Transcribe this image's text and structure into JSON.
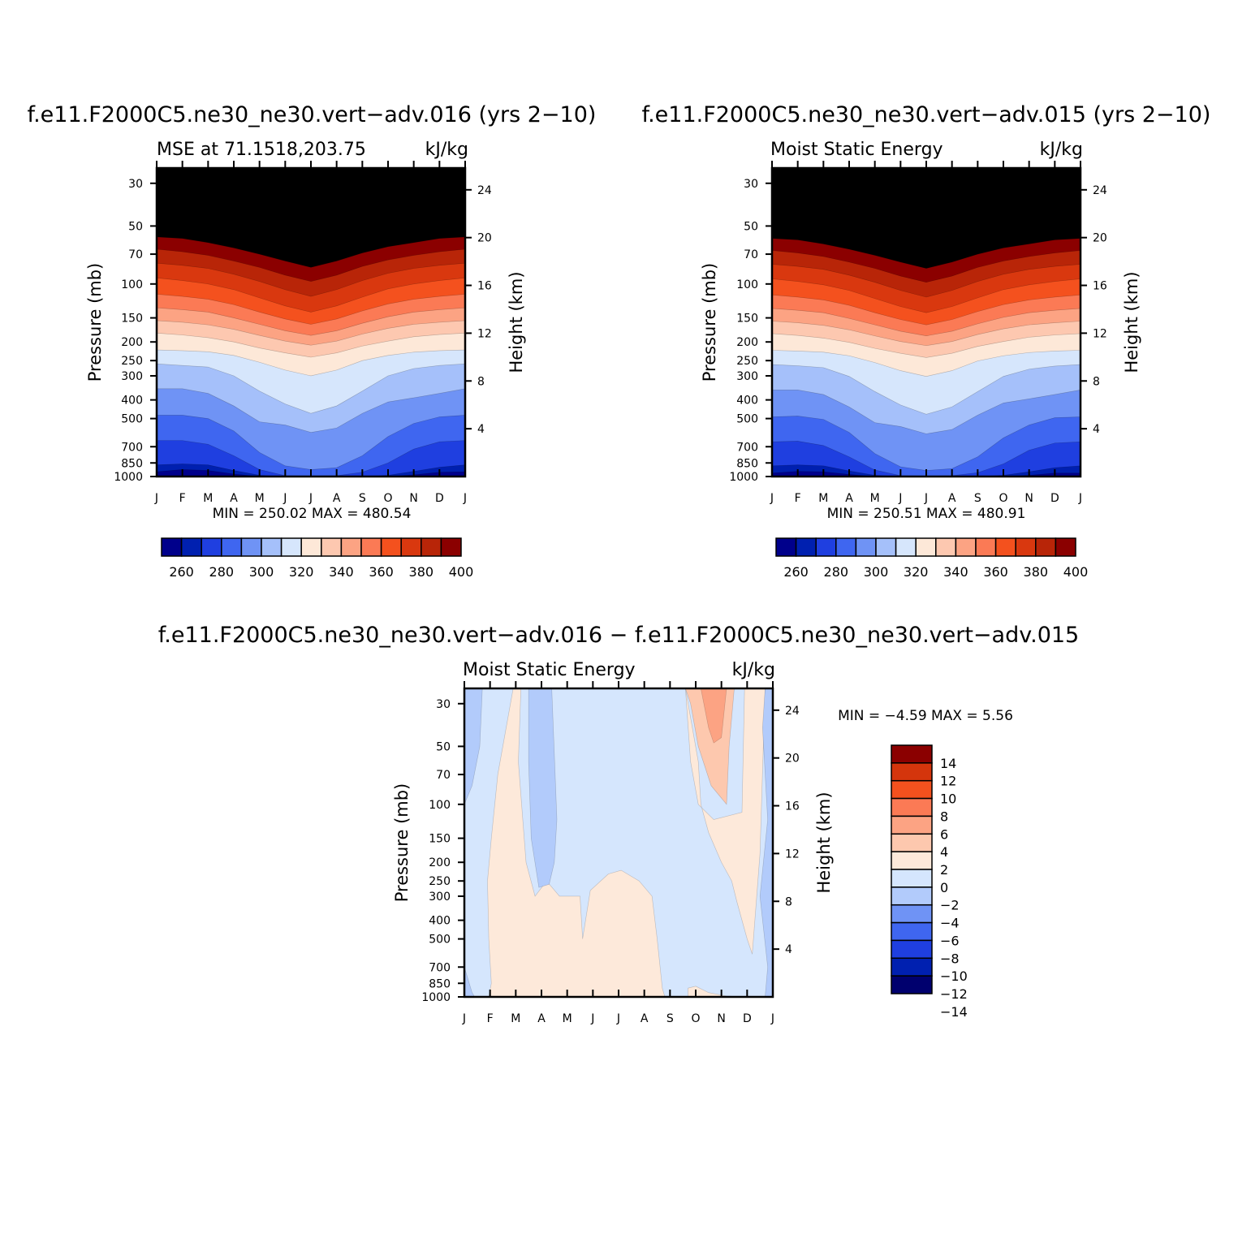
{
  "palette": {
    "mse": [
      "#00008b",
      "#0020b0",
      "#1f3fe0",
      "#3f66f0",
      "#6f93f5",
      "#a5c0fa",
      "#d6e6fc",
      "#fde8d8",
      "#fdc8b0",
      "#fca383",
      "#fb7a55",
      "#f4511e",
      "#d9380f",
      "#b82508",
      "#8b0000"
    ],
    "diff": [
      "#00006e",
      "#0020b0",
      "#1f3fe0",
      "#3f66f0",
      "#6f93f5",
      "#b2cbfb",
      "#d5e6fd",
      "#fde9da",
      "#fdc8ae",
      "#fca383",
      "#fb7a55",
      "#f4511e",
      "#d4350c",
      "#8b0000"
    ]
  },
  "chart_data": [
    {
      "type": "contour",
      "header": "f.e11.F2000C5.ne30_ne30.vert−adv.016 (yrs 2−10)",
      "left_subtitle": "MSE at 71.1518,203.75",
      "right_subtitle": "kJ/kg",
      "xlabel": "",
      "ylabel": "Pressure (mb)",
      "y2label": "Height (km)",
      "x_ticks": [
        "J",
        "F",
        "M",
        "A",
        "M",
        "J",
        "J",
        "A",
        "S",
        "O",
        "N",
        "D",
        "J"
      ],
      "p_ticks": [
        "30",
        "50",
        "70",
        "100",
        "150",
        "200",
        "250",
        "300",
        "400",
        "500",
        "700",
        "850",
        "1000"
      ],
      "h_ticks": [
        "24",
        "20",
        "16",
        "12",
        "8",
        "4"
      ],
      "minmax_label": "MIN = 250.02 MAX = 480.54",
      "min": 250.02,
      "max": 480.54,
      "colorbar_levels": [
        260,
        270,
        280,
        290,
        300,
        310,
        320,
        330,
        340,
        350,
        360,
        370,
        380,
        390,
        400
      ],
      "colorbar_labels": [
        "260",
        "280",
        "300",
        "320",
        "340",
        "360",
        "380",
        "400"
      ],
      "boundaries_mb": [
        [
          945,
          920,
          930,
          970,
          1000,
          1000,
          1000,
          1000,
          1000,
          1000,
          980,
          950,
          945
        ],
        [
          870,
          860,
          870,
          930,
          985,
          1000,
          1000,
          1000,
          1000,
          985,
          940,
          895,
          870
        ],
        [
          650,
          650,
          680,
          780,
          920,
          990,
          995,
          990,
          950,
          850,
          720,
          660,
          650
        ],
        [
          480,
          480,
          500,
          580,
          750,
          880,
          920,
          900,
          780,
          620,
          530,
          490,
          480
        ],
        [
          350,
          350,
          370,
          430,
          520,
          540,
          590,
          560,
          470,
          410,
          390,
          370,
          350
        ],
        [
          260,
          265,
          270,
          300,
          360,
          420,
          470,
          430,
          360,
          300,
          275,
          265,
          260
        ],
        [
          220,
          222,
          225,
          235,
          255,
          280,
          300,
          280,
          250,
          235,
          226,
          222,
          220
        ],
        [
          180,
          184,
          190,
          200,
          215,
          228,
          240,
          228,
          210,
          198,
          188,
          183,
          180
        ],
        [
          155,
          158,
          163,
          172,
          185,
          198,
          208,
          198,
          182,
          170,
          162,
          158,
          155
        ],
        [
          133,
          136,
          140,
          150,
          162,
          175,
          185,
          175,
          160,
          148,
          140,
          136,
          133
        ],
        [
          113,
          116,
          120,
          128,
          140,
          152,
          162,
          152,
          138,
          127,
          120,
          116,
          113
        ],
        [
          93,
          96,
          100,
          107,
          118,
          130,
          140,
          130,
          117,
          106,
          100,
          96,
          93
        ],
        [
          78,
          80,
          83,
          89,
          97,
          107,
          116,
          107,
          96,
          88,
          83,
          80,
          78
        ],
        [
          66,
          68,
          71,
          76,
          82,
          90,
          97,
          90,
          81,
          75,
          71,
          68,
          66
        ],
        [
          57,
          58,
          61,
          65,
          70,
          76,
          82,
          76,
          69,
          64,
          61,
          58,
          57
        ]
      ]
    },
    {
      "type": "contour",
      "header": "f.e11.F2000C5.ne30_ne30.vert−adv.015 (yrs 2−10)",
      "left_subtitle": "Moist Static Energy",
      "right_subtitle": "kJ/kg",
      "xlabel": "",
      "ylabel": "Pressure (mb)",
      "y2label": "Height (km)",
      "x_ticks": [
        "J",
        "F",
        "M",
        "A",
        "M",
        "J",
        "J",
        "A",
        "S",
        "O",
        "N",
        "D",
        "J"
      ],
      "p_ticks": [
        "30",
        "50",
        "70",
        "100",
        "150",
        "200",
        "250",
        "300",
        "400",
        "500",
        "700",
        "850",
        "1000"
      ],
      "h_ticks": [
        "24",
        "20",
        "16",
        "12",
        "8",
        "4"
      ],
      "minmax_label": "MIN = 250.51 MAX = 480.91",
      "min": 250.51,
      "max": 480.91,
      "colorbar_levels": [
        260,
        270,
        280,
        290,
        300,
        310,
        320,
        330,
        340,
        350,
        360,
        370,
        380,
        390,
        400
      ],
      "colorbar_labels": [
        "260",
        "280",
        "300",
        "320",
        "340",
        "360",
        "380",
        "400"
      ],
      "boundaries_mb": [
        [
          960,
          940,
          945,
          975,
          1000,
          1000,
          1000,
          1000,
          1000,
          1000,
          985,
          960,
          960
        ],
        [
          880,
          870,
          880,
          935,
          985,
          1000,
          1000,
          1000,
          1000,
          985,
          945,
          900,
          880
        ],
        [
          660,
          655,
          690,
          790,
          925,
          990,
          995,
          990,
          955,
          860,
          730,
          670,
          660
        ],
        [
          490,
          485,
          505,
          590,
          760,
          890,
          930,
          910,
          790,
          630,
          540,
          495,
          490
        ],
        [
          355,
          355,
          375,
          435,
          525,
          550,
          600,
          570,
          480,
          415,
          395,
          375,
          355
        ],
        [
          262,
          266,
          272,
          302,
          362,
          425,
          475,
          435,
          362,
          302,
          277,
          267,
          262
        ],
        [
          221,
          223,
          226,
          236,
          256,
          282,
          302,
          282,
          251,
          236,
          227,
          223,
          221
        ],
        [
          181,
          185,
          191,
          201,
          216,
          229,
          241,
          229,
          211,
          199,
          189,
          184,
          181
        ],
        [
          156,
          159,
          164,
          173,
          186,
          199,
          209,
          199,
          183,
          171,
          163,
          159,
          156
        ],
        [
          134,
          137,
          141,
          151,
          163,
          176,
          186,
          176,
          161,
          149,
          141,
          137,
          134
        ],
        [
          114,
          117,
          121,
          129,
          141,
          153,
          163,
          153,
          139,
          128,
          121,
          117,
          114
        ],
        [
          94,
          97,
          101,
          108,
          119,
          131,
          141,
          131,
          118,
          107,
          101,
          97,
          94
        ],
        [
          79,
          81,
          84,
          90,
          98,
          108,
          117,
          108,
          97,
          89,
          84,
          81,
          79
        ],
        [
          67,
          69,
          72,
          77,
          83,
          91,
          98,
          91,
          82,
          76,
          72,
          69,
          67
        ],
        [
          58,
          59,
          62,
          66,
          71,
          77,
          83,
          77,
          70,
          65,
          62,
          59,
          58
        ]
      ]
    },
    {
      "type": "contour",
      "header": "f.e11.F2000C5.ne30_ne30.vert−adv.016 − f.e11.F2000C5.ne30_ne30.vert−adv.015",
      "left_subtitle": "Moist Static Energy",
      "right_subtitle": "kJ/kg",
      "ylabel": "Pressure (mb)",
      "y2label": "Height (km)",
      "x_ticks": [
        "J",
        "F",
        "M",
        "A",
        "M",
        "J",
        "J",
        "A",
        "S",
        "O",
        "N",
        "D",
        "J"
      ],
      "p_ticks": [
        "30",
        "50",
        "70",
        "100",
        "150",
        "200",
        "250",
        "300",
        "400",
        "500",
        "700",
        "850",
        "1000"
      ],
      "h_ticks": [
        "24",
        "20",
        "16",
        "12",
        "8",
        "4"
      ],
      "minmax_label": "MIN = −4.59 MAX = 5.56",
      "min": -4.59,
      "max": 5.56,
      "colorbar_labels": [
        "14",
        "12",
        "10",
        "8",
        "6",
        "4",
        "2",
        "0",
        "−2",
        "−4",
        "−6",
        "−8",
        "−10",
        "−12",
        "−14"
      ],
      "background_range": "0 to −2",
      "regions": [
        {
          "range": "0 to 2",
          "month_pressure": [
            [
              0.95,
              1000
            ],
            [
              1.05,
              850
            ],
            [
              0.95,
              500
            ],
            [
              0.9,
              250
            ],
            [
              1.05,
              150
            ],
            [
              1.3,
              70
            ],
            [
              1.9,
              25
            ],
            [
              2.2,
              25
            ],
            [
              2.1,
              60
            ],
            [
              2.4,
              200
            ],
            [
              2.75,
              300
            ],
            [
              3.2,
              250
            ],
            [
              3.7,
              300
            ],
            [
              4.5,
              300
            ],
            [
              4.6,
              500
            ],
            [
              4.9,
              280
            ],
            [
              5.6,
              230
            ],
            [
              6.1,
              220
            ],
            [
              6.8,
              250
            ],
            [
              7.3,
              300
            ],
            [
              7.5,
              500
            ],
            [
              7.7,
              900
            ],
            [
              7.8,
              1000
            ]
          ]
        },
        {
          "range": "0 to 2",
          "month_pressure": [
            [
              7.8,
              25
            ],
            [
              8.6,
              25
            ],
            [
              9.1,
              60
            ],
            [
              9.2,
              100
            ],
            [
              9.5,
              140
            ],
            [
              10.0,
              200
            ],
            [
              10.4,
              250
            ],
            [
              10.6,
              320
            ],
            [
              11.0,
              500
            ],
            [
              11.2,
              600
            ],
            [
              11.5,
              180
            ],
            [
              11.7,
              25
            ],
            [
              11.2,
              25
            ],
            [
              10.9,
              25
            ],
            [
              10.8,
              110
            ],
            [
              9.7,
              120
            ],
            [
              9.1,
              100
            ],
            [
              8.8,
              60
            ],
            [
              8.6,
              25
            ]
          ]
        },
        {
          "range": "0 to 2",
          "month_pressure": [
            [
              8.7,
              900
            ],
            [
              9.0,
              880
            ],
            [
              9.5,
              950
            ],
            [
              10.2,
              990
            ],
            [
              11.0,
              1000
            ],
            [
              8.7,
              1000
            ]
          ]
        },
        {
          "range": "2 to 4",
          "month_pressure": [
            [
              8.6,
              25
            ],
            [
              10.5,
              25
            ],
            [
              10.3,
              50
            ],
            [
              10.2,
              100
            ],
            [
              9.6,
              80
            ],
            [
              9.1,
              50
            ],
            [
              8.8,
              30
            ]
          ]
        },
        {
          "range": "4 to 6",
          "month_pressure": [
            [
              9.2,
              25
            ],
            [
              10.2,
              25
            ],
            [
              10.0,
              45
            ],
            [
              9.7,
              48
            ],
            [
              9.5,
              40
            ]
          ]
        },
        {
          "range": "−2 to −4",
          "month_pressure": [
            [
              2.5,
              25
            ],
            [
              3.4,
              25
            ],
            [
              3.6,
              120
            ],
            [
              3.5,
              200
            ],
            [
              3.3,
              260
            ],
            [
              2.9,
              270
            ],
            [
              2.6,
              150
            ],
            [
              2.5,
              60
            ]
          ]
        },
        {
          "range": "−2 to −4",
          "month_pressure": [
            [
              0,
              25
            ],
            [
              0.7,
              25
            ],
            [
              0.6,
              50
            ],
            [
              0.3,
              80
            ],
            [
              0,
              100
            ]
          ]
        },
        {
          "range": "−2 to −4",
          "month_pressure": [
            [
              11.7,
              25
            ],
            [
              12,
              25
            ],
            [
              12,
              1000
            ],
            [
              11.7,
              1000
            ],
            [
              11.8,
              700
            ],
            [
              11.5,
              300
            ],
            [
              11.8,
              120
            ],
            [
              11.6,
              40
            ]
          ]
        },
        {
          "range": "−2 to −4",
          "month_pressure": [
            [
              0,
              700
            ],
            [
              0.3,
              950
            ],
            [
              0.4,
              1000
            ],
            [
              0,
              1000
            ]
          ]
        }
      ]
    }
  ]
}
